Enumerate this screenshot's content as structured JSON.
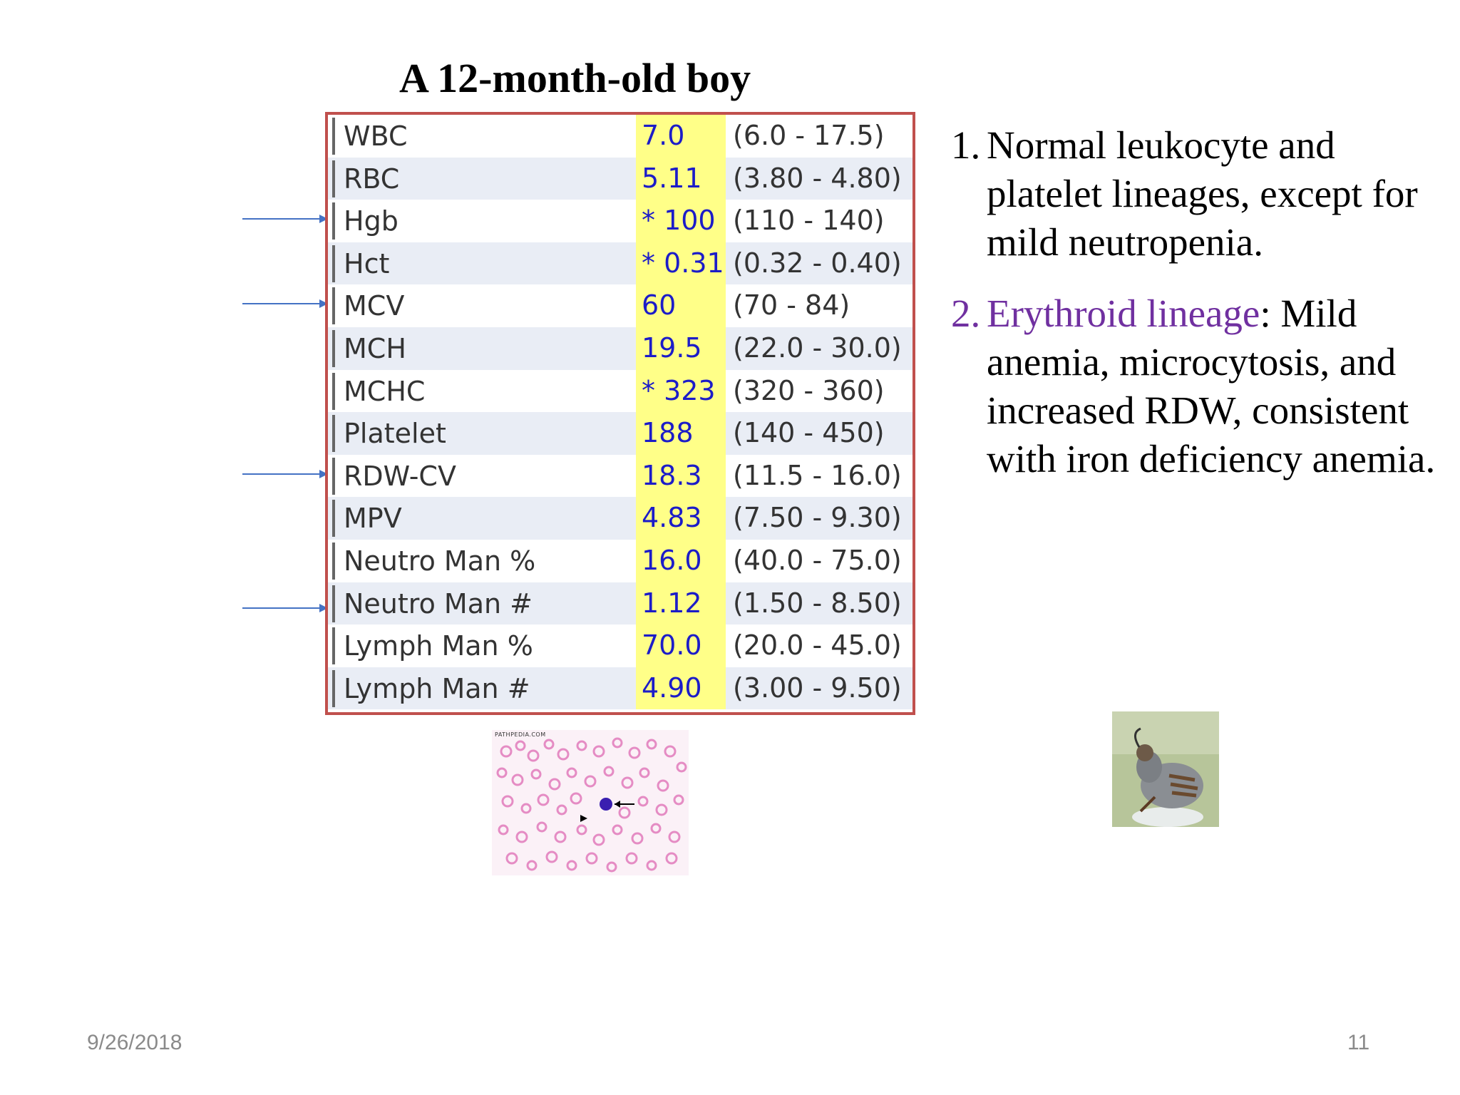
{
  "slide": {
    "title": "A 12-month-old boy",
    "footer_date": "9/26/2018",
    "footer_page": "11"
  },
  "lab_table": {
    "rows": [
      {
        "name": "WBC",
        "value": "7.0",
        "range": "(6.0 - 17.5)"
      },
      {
        "name": "RBC",
        "value": "5.11",
        "range": "(3.80 - 4.80)"
      },
      {
        "name": "Hgb",
        "value": "* 100",
        "range": "(110 - 140)"
      },
      {
        "name": "Hct",
        "value": "* 0.31",
        "range": "(0.32 - 0.40)"
      },
      {
        "name": "MCV",
        "value": "60",
        "range": "(70 - 84)"
      },
      {
        "name": "MCH",
        "value": "19.5",
        "range": "(22.0 - 30.0)"
      },
      {
        "name": "MCHC",
        "value": "* 323",
        "range": "(320 - 360)"
      },
      {
        "name": "Platelet",
        "value": "188",
        "range": "(140 - 450)"
      },
      {
        "name": "RDW-CV",
        "value": "18.3",
        "range": "(11.5 - 16.0)"
      },
      {
        "name": "MPV",
        "value": "4.83",
        "range": "(7.50 - 9.30)"
      },
      {
        "name": "Neutro Man %",
        "value": "16.0",
        "range": "(40.0 - 75.0)"
      },
      {
        "name": "Neutro Man #",
        "value": "1.12",
        "range": "(1.50 - 8.50)"
      },
      {
        "name": "Lymph Man %",
        "value": "70.0",
        "range": "(20.0 - 45.0)"
      },
      {
        "name": "Lymph Man #",
        "value": "4.90",
        "range": "(3.00 - 9.50)"
      }
    ]
  },
  "notes": {
    "item1_num": "1.",
    "item1_text": "Normal leukocyte and platelet lineages, except for mild neutropenia.",
    "item2_num": "2.",
    "item2_accent": "Erythroid lineage",
    "item2_text": ": Mild anemia, microcytosis, and increased RDW, consistent with iron deficiency anemia."
  },
  "smear_image": {
    "caption": "PATHPEDIA.COM"
  },
  "colors": {
    "table_border": "#c0504d",
    "value_highlight": "#ffff88",
    "value_text": "#1c1cc8",
    "accent_text": "#7030a0",
    "arrow": "#4472c4"
  }
}
